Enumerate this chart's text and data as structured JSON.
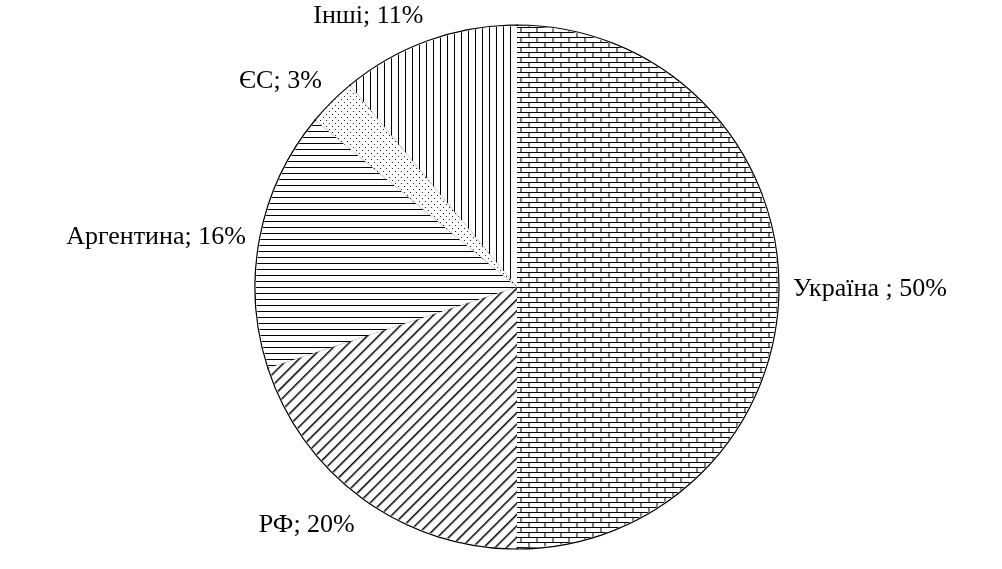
{
  "chart_data": {
    "type": "pie",
    "categories": [
      "Україна ",
      "РФ",
      "Аргентина",
      "ЄС",
      "Інші"
    ],
    "values": [
      50,
      20,
      16,
      3,
      11
    ],
    "value_labels": [
      "; 50%",
      "; 20%",
      "; 16%",
      "; 3%",
      "; 11%"
    ],
    "colors": [
      "#ffffff",
      "#ffffff",
      "#ffffff",
      "#ffffff",
      "#ffffff"
    ]
  }
}
